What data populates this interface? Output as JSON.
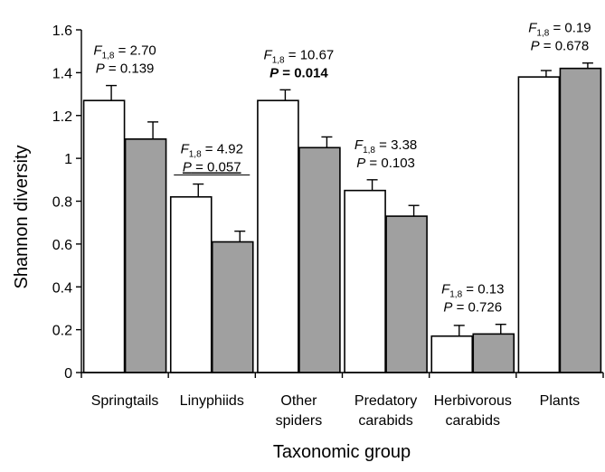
{
  "chart_data": {
    "type": "bar",
    "xlabel": "Taxonomic group",
    "ylabel": "Shannon diversity",
    "ylim": [
      0,
      1.6
    ],
    "yticks": [
      "0",
      "0.2",
      "0.4",
      "0.6",
      "0.8",
      "1",
      "1.2",
      "1.4",
      "1.6"
    ],
    "grid": false,
    "colors": [
      "#ffffff",
      "#a0a0a0"
    ],
    "categories": [
      {
        "lines": [
          "Springtails"
        ]
      },
      {
        "lines": [
          "Linyphiids"
        ]
      },
      {
        "lines": [
          "Other",
          "spiders"
        ]
      },
      {
        "lines": [
          "Predatory",
          "carabids"
        ]
      },
      {
        "lines": [
          "Herbivorous",
          "carabids"
        ]
      },
      {
        "lines": [
          "Plants"
        ]
      }
    ],
    "series": [
      {
        "values": [
          1.27,
          0.82,
          1.27,
          0.85,
          0.17,
          1.38
        ],
        "errors": [
          0.07,
          0.06,
          0.05,
          0.05,
          0.05,
          0.03
        ]
      },
      {
        "values": [
          1.09,
          0.61,
          1.05,
          0.73,
          0.18,
          1.42
        ],
        "errors": [
          0.08,
          0.05,
          0.05,
          0.05,
          0.045,
          0.025
        ]
      }
    ],
    "stats": [
      {
        "f_label": "F",
        "f_sub": "1,8",
        "f_value": "= 2.70",
        "p_label": "P",
        "p_value": "= 0.139",
        "style": "normal"
      },
      {
        "f_label": "F",
        "f_sub": "1,8",
        "f_value": "= 4.92",
        "p_label": "P",
        "p_value": "= 0.057",
        "style": "underline"
      },
      {
        "f_label": "F",
        "f_sub": "1,8",
        "f_value": "= 10.67",
        "p_label": "P",
        "p_value": "= 0.014",
        "style": "bold"
      },
      {
        "f_label": "F",
        "f_sub": "1,8",
        "f_value": "= 3.38",
        "p_label": "P",
        "p_value": "= 0.103",
        "style": "normal"
      },
      {
        "f_label": "F",
        "f_sub": "1,8",
        "f_value": "= 0.13",
        "p_label": "P",
        "p_value": "= 0.726",
        "style": "normal"
      },
      {
        "f_label": "F",
        "f_sub": "1,8",
        "f_value": "= 0.19",
        "p_label": "P",
        "p_value": "= 0.678",
        "style": "normal"
      }
    ]
  }
}
